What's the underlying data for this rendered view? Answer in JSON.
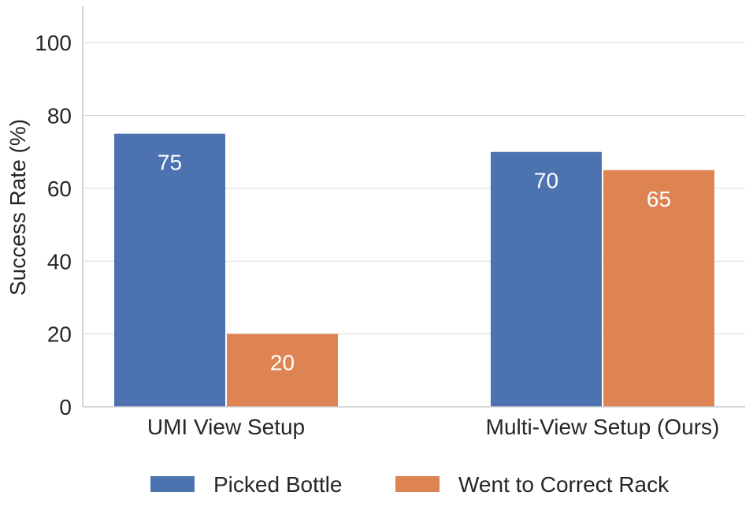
{
  "chart_data": {
    "type": "bar",
    "title": "",
    "xlabel": "",
    "ylabel": "Success Rate (%)",
    "ylim": [
      0,
      110
    ],
    "yticks": [
      0,
      20,
      40,
      60,
      80,
      100
    ],
    "grid": "horizontal",
    "legend_position": "bottom-center",
    "categories": [
      "UMI View Setup",
      "Multi-View Setup (Ours)"
    ],
    "series": [
      {
        "name": "Picked Bottle",
        "color": "#4c72b0",
        "values": [
          75,
          70
        ]
      },
      {
        "name": "Went to Correct Rack",
        "color": "#dd8452",
        "values": [
          20,
          65
        ]
      }
    ]
  }
}
